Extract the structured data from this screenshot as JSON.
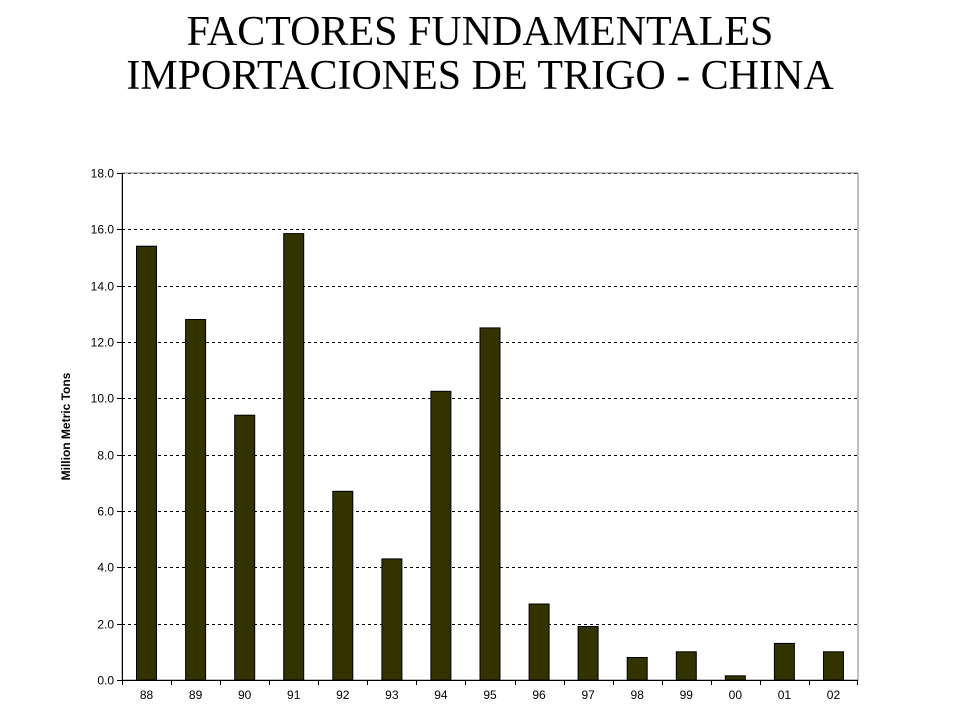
{
  "chart_data": {
    "type": "bar",
    "title_lines": [
      "FACTORES FUNDAMENTALES",
      "IMPORTACIONES DE TRIGO - CHINA"
    ],
    "xlabel": "",
    "ylabel": "Million Metric Tons",
    "categories": [
      "88",
      "89",
      "90",
      "91",
      "92",
      "93",
      "94",
      "95",
      "96",
      "97",
      "98",
      "99",
      "00",
      "01",
      "02"
    ],
    "values": [
      15.4,
      12.8,
      9.4,
      15.85,
      6.7,
      4.3,
      10.25,
      12.5,
      2.7,
      1.9,
      0.8,
      1.0,
      0.15,
      1.3,
      1.0
    ],
    "ylim": [
      0,
      18
    ],
    "yticks": [
      "0.0",
      "2.0",
      "4.0",
      "6.0",
      "8.0",
      "10.0",
      "12.0",
      "14.0",
      "16.0",
      "18.0"
    ],
    "grid": "horizontal-dashed",
    "legend": "none",
    "bar_color": "#333300",
    "plot_border_color": "#808080",
    "grid_color": "#000000"
  }
}
